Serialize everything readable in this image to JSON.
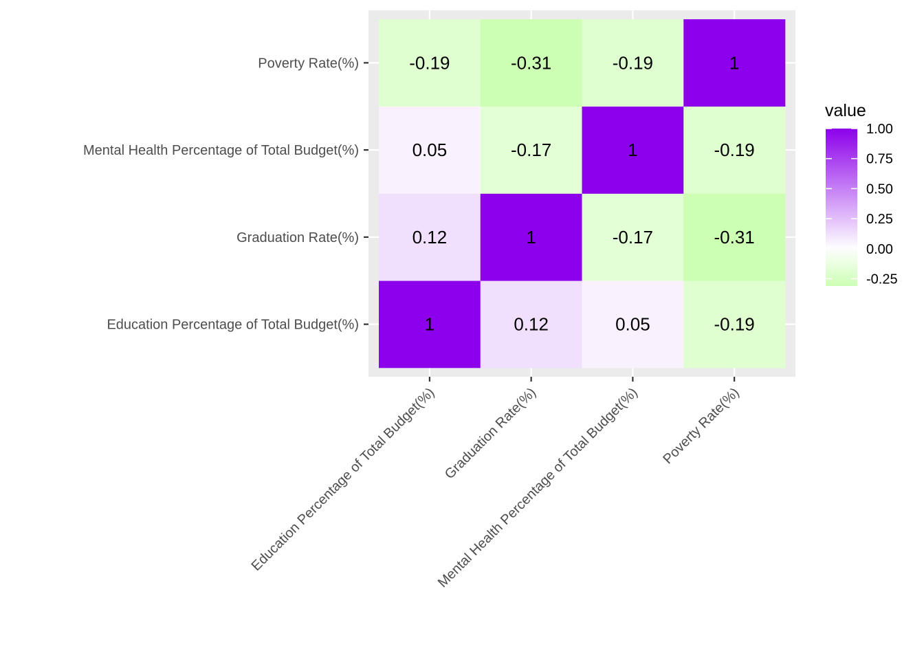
{
  "chart_data": {
    "type": "heatmap",
    "title": "",
    "xlabel": "",
    "ylabel": "",
    "x_categories": [
      "Education Percentage of Total Budget(%)",
      "Graduation Rate(%)",
      "Mental Health Percentage of Total Budget(%)",
      "Poverty Rate(%)"
    ],
    "y_categories": [
      "Education Percentage of Total Budget(%)",
      "Graduation Rate(%)",
      "Mental Health Percentage of Total Budget(%)",
      "Poverty Rate(%)"
    ],
    "values": [
      [
        1,
        0.12,
        0.05,
        -0.19
      ],
      [
        0.12,
        1,
        -0.17,
        -0.31
      ],
      [
        0.05,
        -0.17,
        1,
        -0.19
      ],
      [
        -0.19,
        -0.31,
        -0.19,
        1
      ]
    ],
    "cell_labels": [
      [
        "1",
        "0.12",
        "0.05",
        "-0.19"
      ],
      [
        "0.12",
        "1",
        "-0.17",
        "-0.31"
      ],
      [
        "0.05",
        "-0.17",
        "1",
        "-0.19"
      ],
      [
        "-0.19",
        "-0.31",
        "-0.19",
        "1"
      ]
    ],
    "legend": {
      "title": "value",
      "position": "right",
      "range": [
        -0.31,
        1
      ],
      "ticks": [
        1.0,
        0.75,
        0.5,
        0.25,
        0.0,
        -0.25
      ],
      "tick_labels": [
        "1.00",
        "0.75",
        "0.50",
        "0.25",
        "0.00",
        "-0.25"
      ]
    },
    "colors": {
      "low": "#ccffb3",
      "mid": "#ffffff",
      "high": "#8c00eb",
      "panel_background": "#ebebeb",
      "grid": "#ffffff",
      "axis_text": "#4d4d4d",
      "cell_text": "#000000"
    },
    "grid": true
  }
}
